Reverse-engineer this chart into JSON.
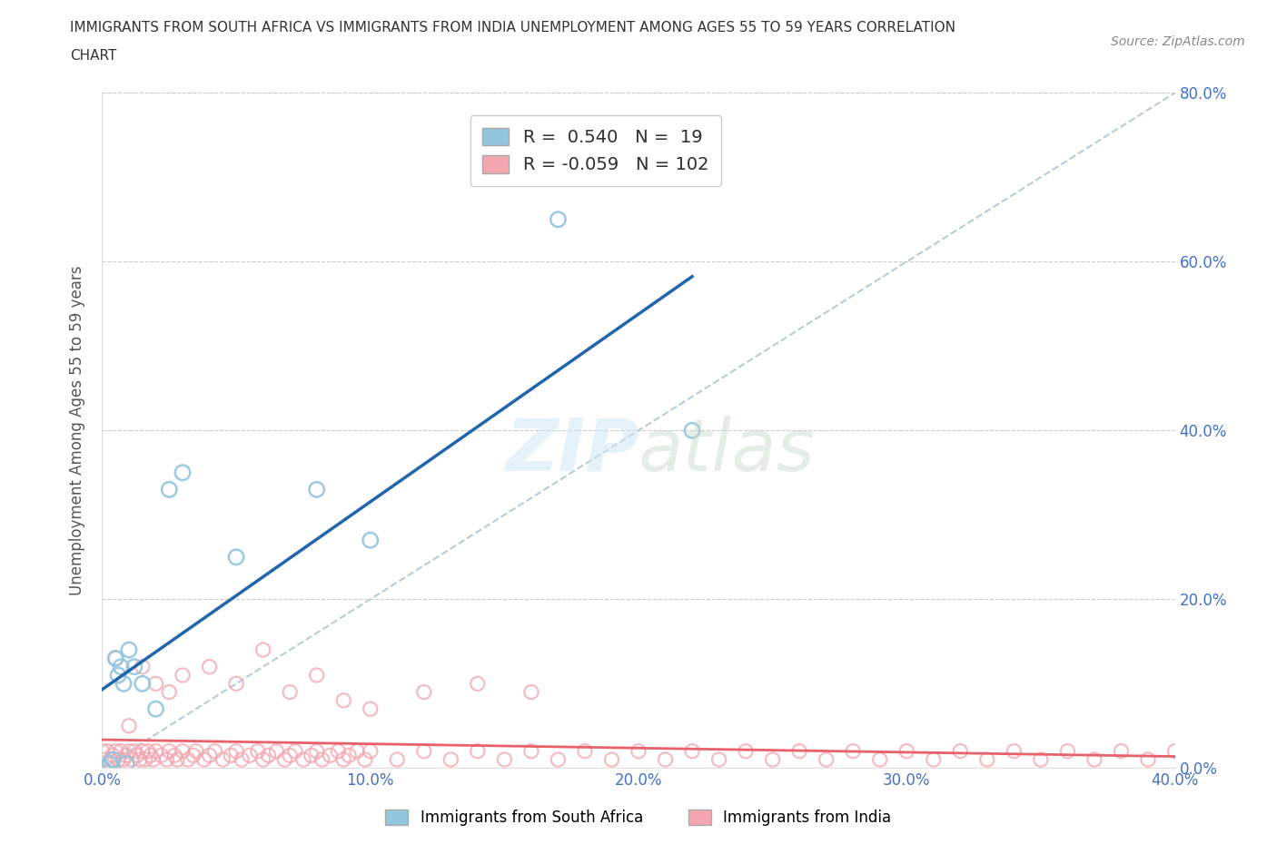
{
  "title_line1": "IMMIGRANTS FROM SOUTH AFRICA VS IMMIGRANTS FROM INDIA UNEMPLOYMENT AMONG AGES 55 TO 59 YEARS CORRELATION",
  "title_line2": "CHART",
  "source_text": "Source: ZipAtlas.com",
  "ylabel": "Unemployment Among Ages 55 to 59 years",
  "legend_label1": "Immigrants from South Africa",
  "legend_label2": "Immigrants from India",
  "R1": 0.54,
  "N1": 19,
  "R2": -0.059,
  "N2": 102,
  "color1": "#92c5de",
  "color2": "#f4a6b0",
  "line1_color": "#2166ac",
  "line2_color": "#e8606a",
  "diagonal_color": "#aec7d8",
  "xmin": 0.0,
  "xmax": 0.4,
  "ymin": 0.0,
  "ymax": 0.8,
  "xtick_values": [
    0.0,
    0.1,
    0.2,
    0.3,
    0.4
  ],
  "ytick_values": [
    0.0,
    0.2,
    0.4,
    0.6,
    0.8
  ],
  "sa_x": [
    0.0,
    0.003,
    0.004,
    0.005,
    0.006,
    0.007,
    0.008,
    0.009,
    0.01,
    0.012,
    0.015,
    0.02,
    0.025,
    0.03,
    0.05,
    0.08,
    0.1,
    0.17,
    0.22
  ],
  "sa_y": [
    0.0,
    0.005,
    0.01,
    0.13,
    0.11,
    0.12,
    0.1,
    0.005,
    0.14,
    0.12,
    0.1,
    0.07,
    0.33,
    0.35,
    0.25,
    0.33,
    0.27,
    0.65,
    0.4
  ],
  "india_x": [
    0.0,
    0.001,
    0.002,
    0.003,
    0.004,
    0.005,
    0.006,
    0.007,
    0.008,
    0.009,
    0.01,
    0.011,
    0.012,
    0.013,
    0.014,
    0.015,
    0.016,
    0.017,
    0.018,
    0.019,
    0.02,
    0.022,
    0.024,
    0.025,
    0.027,
    0.028,
    0.03,
    0.032,
    0.034,
    0.035,
    0.038,
    0.04,
    0.042,
    0.045,
    0.048,
    0.05,
    0.052,
    0.055,
    0.058,
    0.06,
    0.062,
    0.065,
    0.068,
    0.07,
    0.072,
    0.075,
    0.078,
    0.08,
    0.082,
    0.085,
    0.088,
    0.09,
    0.092,
    0.095,
    0.098,
    0.1,
    0.11,
    0.12,
    0.13,
    0.14,
    0.15,
    0.16,
    0.17,
    0.18,
    0.19,
    0.2,
    0.21,
    0.22,
    0.23,
    0.24,
    0.25,
    0.26,
    0.27,
    0.28,
    0.29,
    0.3,
    0.31,
    0.32,
    0.33,
    0.34,
    0.35,
    0.36,
    0.37,
    0.38,
    0.39,
    0.4,
    0.005,
    0.01,
    0.015,
    0.02,
    0.025,
    0.03,
    0.04,
    0.05,
    0.06,
    0.07,
    0.08,
    0.09,
    0.1,
    0.12,
    0.14,
    0.16
  ],
  "india_y": [
    0.02,
    0.01,
    0.02,
    0.01,
    0.015,
    0.02,
    0.01,
    0.02,
    0.01,
    0.015,
    0.02,
    0.01,
    0.02,
    0.015,
    0.01,
    0.02,
    0.01,
    0.02,
    0.015,
    0.01,
    0.02,
    0.015,
    0.01,
    0.02,
    0.015,
    0.01,
    0.02,
    0.01,
    0.015,
    0.02,
    0.01,
    0.015,
    0.02,
    0.01,
    0.015,
    0.02,
    0.01,
    0.015,
    0.02,
    0.01,
    0.015,
    0.02,
    0.01,
    0.015,
    0.02,
    0.01,
    0.015,
    0.02,
    0.01,
    0.015,
    0.02,
    0.01,
    0.015,
    0.02,
    0.01,
    0.02,
    0.01,
    0.02,
    0.01,
    0.02,
    0.01,
    0.02,
    0.01,
    0.02,
    0.01,
    0.02,
    0.01,
    0.02,
    0.01,
    0.02,
    0.01,
    0.02,
    0.01,
    0.02,
    0.01,
    0.02,
    0.01,
    0.02,
    0.01,
    0.02,
    0.01,
    0.02,
    0.01,
    0.02,
    0.01,
    0.02,
    0.13,
    0.05,
    0.12,
    0.1,
    0.09,
    0.11,
    0.12,
    0.1,
    0.14,
    0.09,
    0.11,
    0.08,
    0.07,
    0.09,
    0.1,
    0.09
  ]
}
